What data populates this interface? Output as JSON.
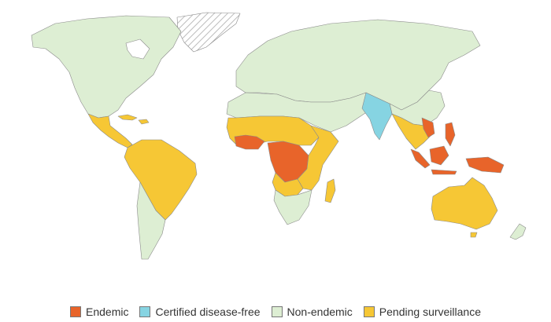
{
  "colors": {
    "endemic": "#e8642a",
    "certified": "#86d4e2",
    "non_endemic": "#ddeed3",
    "pending": "#f6c735",
    "no_data_hatch": "#d9d9d9"
  },
  "legend": [
    {
      "key": "endemic",
      "label": "Endemic",
      "color": "#e8642a"
    },
    {
      "key": "certified",
      "label": "Certified disease-free",
      "color": "#86d4e2"
    },
    {
      "key": "non_endemic",
      "label": "Non-endemic",
      "color": "#ddeed3"
    },
    {
      "key": "pending",
      "label": "Pending surveillance",
      "color": "#f6c735"
    }
  ]
}
